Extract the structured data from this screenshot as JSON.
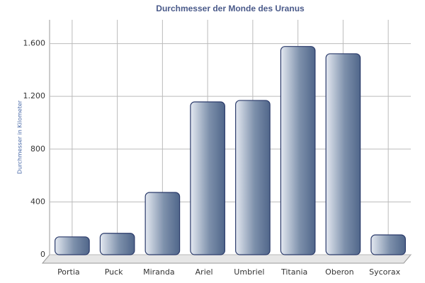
{
  "chart_data": {
    "type": "bar",
    "title": "Durchmesser der Monde des Uranus",
    "y_label": "Durchmesser in Kilometer",
    "categories": [
      "Portia",
      "Puck",
      "Miranda",
      "Ariel",
      "Umbriel",
      "Titania",
      "Oberon",
      "Sycorax"
    ],
    "values": [
      135,
      162,
      472,
      1158,
      1169,
      1578,
      1523,
      150
    ],
    "color": "#5a7090",
    "ylim": [
      0,
      1780
    ],
    "yticks": [
      0,
      400,
      800,
      {
        "value": 1200,
        "label": "1.200"
      },
      {
        "value": 1600,
        "label": "1.600"
      }
    ],
    "grid": true
  }
}
